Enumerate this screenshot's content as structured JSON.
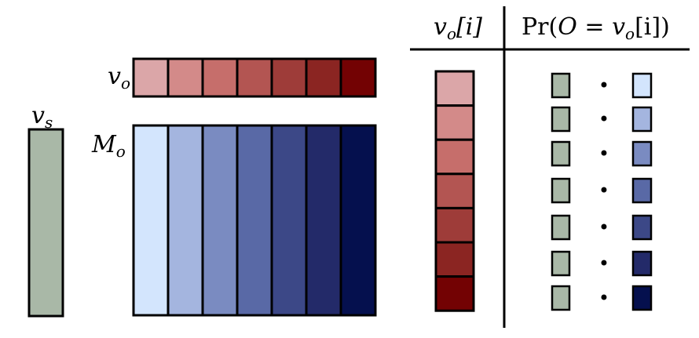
{
  "labels": {
    "vs_symbol": "v",
    "vs_subscript": "s",
    "vo_symbol": "v",
    "vo_subscript": "o",
    "Mo_symbol": "M",
    "Mo_subscript": "o",
    "col1_symbol": "v",
    "col1_subscript": "o",
    "col1_index": "[i]",
    "col2_pr": "Pr(",
    "col2_O": "O",
    "col2_eq": " = ",
    "col2_v": "v",
    "col2_v_sub": "o",
    "col2_tail": "[i])"
  },
  "colors": {
    "vs_green": "#a9b8a7",
    "reds": [
      "#dba6a8",
      "#d38a89",
      "#c66e6b",
      "#b35552",
      "#9e3c39",
      "#8b2522",
      "#730203"
    ],
    "blues": [
      "#d3e5fd",
      "#a4b5df",
      "#7a8bc1",
      "#5969a6",
      "#3c4887",
      "#232a69",
      "#05104e"
    ],
    "stroke": "#000000"
  },
  "rows": [
    {
      "dot": "•"
    },
    {
      "dot": "•"
    },
    {
      "dot": "•"
    },
    {
      "dot": "•"
    },
    {
      "dot": "•"
    },
    {
      "dot": "•"
    },
    {
      "dot": "•"
    }
  ]
}
